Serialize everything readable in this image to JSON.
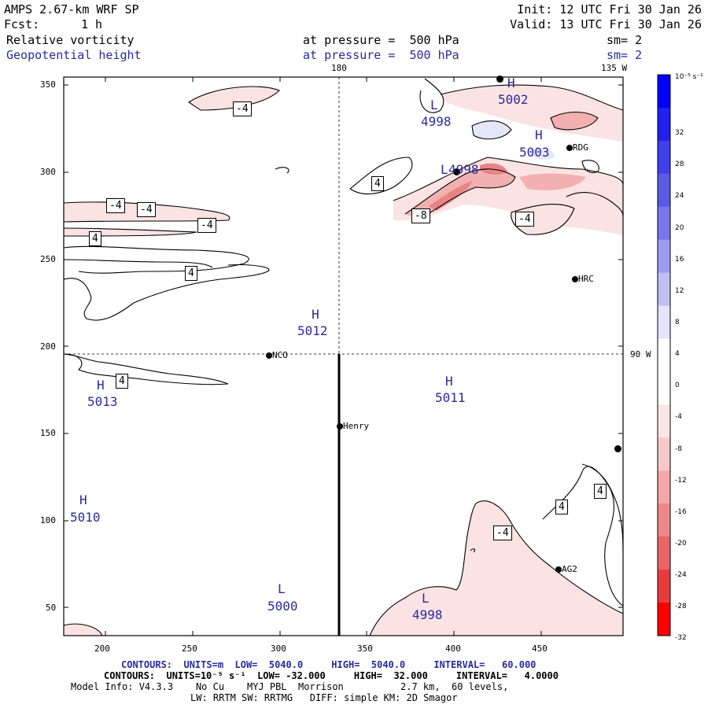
{
  "header": {
    "model": "AMPS 2.67-km WRF SP",
    "forecast_label": "Fcst:",
    "forecast_value": "1 h",
    "init": "Init: 12 UTC Fri 30 Jan 26",
    "valid": "Valid: 13 UTC Fri 30 Jan 26",
    "field1_name": "Relative vorticity",
    "field1_level": "at pressure =  500 hPa",
    "field1_sm": "sm= 2",
    "field2_name": "Geopotential height",
    "field2_level": "at pressure =  500 hPa",
    "field2_sm": "sm= 2"
  },
  "map": {
    "meridian_top_180": "180",
    "meridian_top_135w": "135 W",
    "meridian_right_90w": "90 W",
    "x_ticks": [
      "200",
      "250",
      "300",
      "350",
      "400",
      "450"
    ],
    "y_ticks": [
      "350",
      "300",
      "250",
      "200",
      "150",
      "100",
      "50"
    ],
    "stations": [
      {
        "name": "NCO"
      },
      {
        "name": "Henry"
      },
      {
        "name": "HRC"
      },
      {
        "name": "RDG"
      },
      {
        "name": "AG2"
      }
    ],
    "pressure_centers": [
      {
        "type": "H",
        "value": "5012"
      },
      {
        "type": "H",
        "value": "5013"
      },
      {
        "type": "H",
        "value": "5011"
      },
      {
        "type": "H",
        "value": "5010"
      },
      {
        "type": "L",
        "value": "5000"
      },
      {
        "type": "L",
        "value": "4998"
      },
      {
        "type": "H",
        "value": "5002"
      },
      {
        "type": "L",
        "value": "4998"
      },
      {
        "type": "H",
        "value": "5003"
      },
      {
        "type": "L",
        "value": "4998"
      }
    ],
    "contour_labels": [
      "-4",
      "-4",
      "-4",
      "-4",
      "4",
      "4",
      "4",
      "4",
      "-8",
      "-4",
      "-4",
      "4",
      "4"
    ]
  },
  "colorbar": {
    "unit": "10⁻⁵ s⁻¹",
    "labels": [
      "32",
      "28",
      "24",
      "20",
      "16",
      "12",
      "8",
      "4",
      "0",
      "-4",
      "-8",
      "-12",
      "-16",
      "-20",
      "-24",
      "-28",
      "-32"
    ],
    "colors": [
      "#0000ff",
      "#2020f0",
      "#4040e8",
      "#5a5ae6",
      "#7878ec",
      "#9c9cf0",
      "#c0c0f4",
      "#e4e4fa",
      "#ffffff",
      "#ffffff",
      "#fbe6e6",
      "#f6c8c8",
      "#f2a8a8",
      "#ee8888",
      "#ea6464",
      "#e83c3c",
      "#ff0000"
    ]
  },
  "footer": {
    "line1": "CONTOURS:  UNITS=m  LOW=  5040.0     HIGH=  5040.0     INTERVAL=   60.000",
    "line2": "CONTOURS:  UNITS=10⁻⁵ s⁻¹  LOW= -32.000     HIGH=  32.000     INTERVAL=   4.0000",
    "line3": "Model Info: V4.3.3    No Cu    MYJ PBL  Morrison          2.7 km,  60 levels,",
    "line4": "LW: RRTM SW: RRTMG   DIFF: simple KM: 2D Smagor"
  }
}
